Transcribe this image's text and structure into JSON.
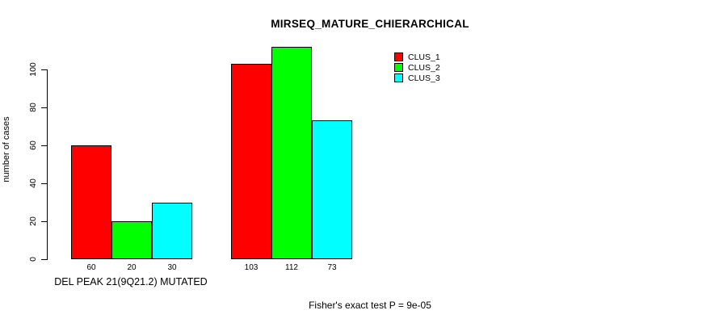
{
  "chart_data": {
    "type": "bar",
    "title": "MIRSEQ_MATURE_CHIERARCHICAL",
    "ylabel": "number of cases",
    "xlabel": "DEL PEAK 21(9Q21.2) MUTATED",
    "annotation": "Fisher's exact test P = 9e-05",
    "ylim": [
      0,
      100
    ],
    "yticks": [
      0,
      20,
      40,
      60,
      80,
      100
    ],
    "categories": [
      "DEL PEAK 21(9Q21.2) MUTATED",
      ""
    ],
    "series": [
      {
        "name": "CLUS_1",
        "color": "#ff0000",
        "values": [
          60,
          103
        ]
      },
      {
        "name": "CLUS_2",
        "color": "#00ff00",
        "values": [
          20,
          112
        ]
      },
      {
        "name": "CLUS_3",
        "color": "#00ffff",
        "values": [
          30,
          73
        ]
      }
    ],
    "bar_labels_shown": true,
    "grid": false,
    "legend": {
      "position": "top-right",
      "entries": [
        "CLUS_1",
        "CLUS_2",
        "CLUS_3"
      ]
    }
  }
}
